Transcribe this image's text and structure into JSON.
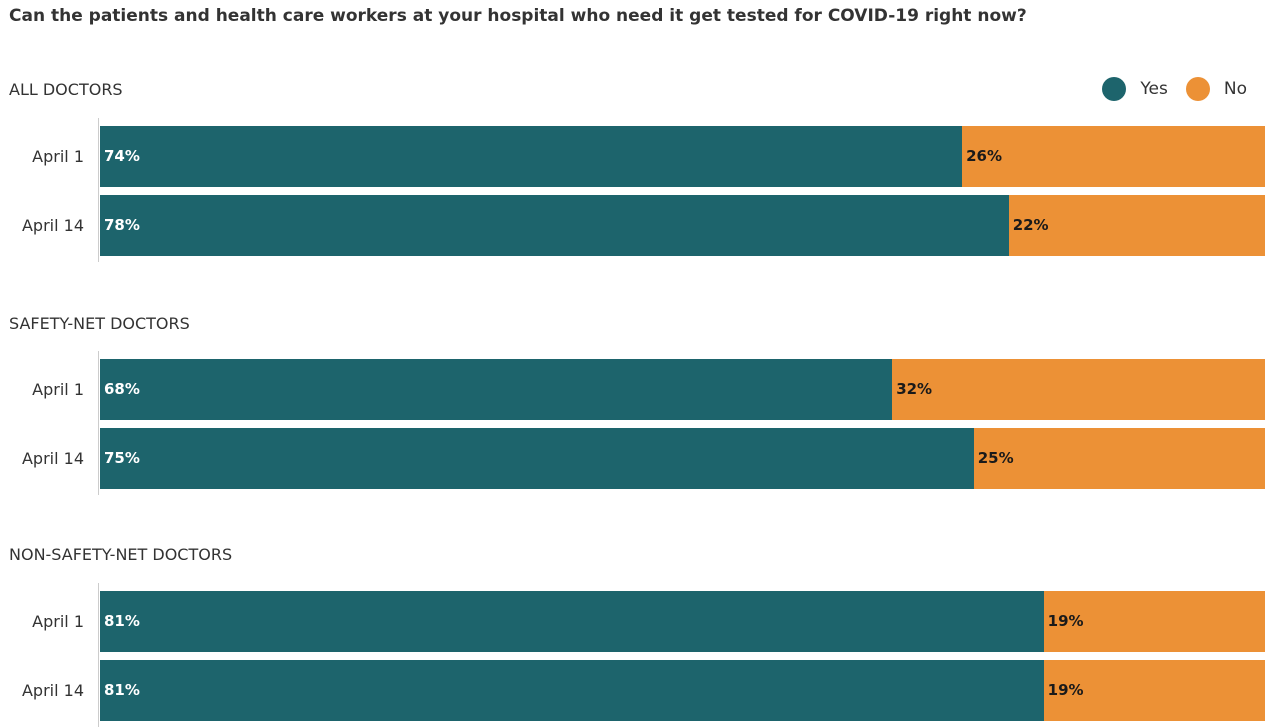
{
  "chart_data": {
    "type": "bar",
    "stacked": true,
    "orientation": "horizontal",
    "title": "Can the patients and health care workers at your hospital who need it get tested for COVID-19 right now?",
    "legend": {
      "placement": "top-right",
      "entries": [
        "Yes",
        "No"
      ]
    },
    "colors": {
      "Yes": "#1d646c",
      "No": "#ec9136"
    },
    "groups": [
      {
        "label": "ALL DOCTORS",
        "rows": [
          {
            "category": "April 1",
            "Yes": 74,
            "No": 26,
            "yes_label": "74%",
            "no_label": "26%"
          },
          {
            "category": "April 14",
            "Yes": 78,
            "No": 22,
            "yes_label": "78%",
            "no_label": "22%"
          }
        ]
      },
      {
        "label": "SAFETY-NET DOCTORS",
        "rows": [
          {
            "category": "April 1",
            "Yes": 68,
            "No": 32,
            "yes_label": "68%",
            "no_label": "32%"
          },
          {
            "category": "April 14",
            "Yes": 75,
            "No": 25,
            "yes_label": "75%",
            "no_label": "25%"
          }
        ]
      },
      {
        "label": "NON-SAFETY-NET DOCTORS",
        "rows": [
          {
            "category": "April 1",
            "Yes": 81,
            "No": 19,
            "yes_label": "81%",
            "no_label": "19%"
          },
          {
            "category": "April 14",
            "Yes": 81,
            "No": 19,
            "yes_label": "81%",
            "no_label": "19%"
          }
        ]
      }
    ],
    "xlim": [
      0,
      100
    ],
    "grid": false
  }
}
